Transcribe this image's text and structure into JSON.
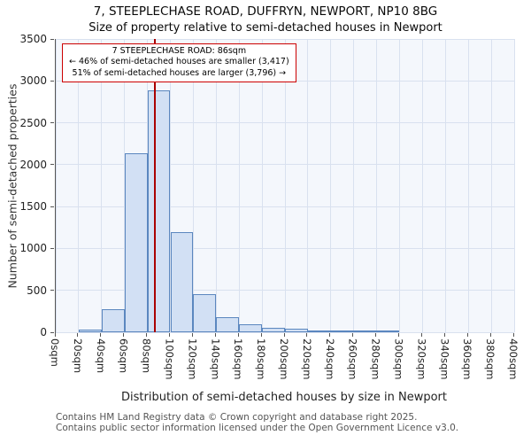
{
  "header": {
    "title": "7, STEEPLECHASE ROAD, DUFFRYN, NEWPORT, NP10 8BG",
    "subtitle": "Size of property relative to semi-detached houses in Newport"
  },
  "annotation": {
    "line1": "7 STEEPLECHASE ROAD: 86sqm",
    "line2": "← 46% of semi-detached houses are smaller (3,417)",
    "line3": "51% of semi-detached houses are larger (3,796) →"
  },
  "footer": {
    "line1": "Contains HM Land Registry data © Crown copyright and database right 2025.",
    "line2": "Contains public sector information licensed under the Open Government Licence v3.0."
  },
  "chart_data": {
    "type": "bar",
    "title": "7, STEEPLECHASE ROAD, DUFFRYN, NEWPORT, NP10 8BG",
    "subtitle": "Size of property relative to semi-detached houses in Newport",
    "xlabel": "Distribution of semi-detached houses by size in Newport",
    "ylabel": "Number of semi-detached properties",
    "xlim": [
      0,
      400
    ],
    "ylim": [
      0,
      3500
    ],
    "yticks": [
      0,
      500,
      1000,
      1500,
      2000,
      2500,
      3000,
      3500
    ],
    "bin_width_sqm": 20,
    "grid": true,
    "legend": false,
    "categories": [
      "0sqm",
      "20sqm",
      "40sqm",
      "60sqm",
      "80sqm",
      "100sqm",
      "120sqm",
      "140sqm",
      "160sqm",
      "180sqm",
      "200sqm",
      "220sqm",
      "240sqm",
      "260sqm",
      "280sqm",
      "300sqm",
      "320sqm",
      "340sqm",
      "360sqm",
      "380sqm",
      "400sqm"
    ],
    "values": [
      0,
      30,
      270,
      2140,
      2890,
      1200,
      450,
      175,
      100,
      50,
      45,
      25,
      12,
      8,
      5,
      0,
      0,
      0,
      0,
      0
    ],
    "marker": {
      "label": "7 STEEPLECHASE ROAD",
      "value_sqm": 86,
      "smaller_pct": 46,
      "smaller_count": "3,417",
      "larger_pct": 51,
      "larger_count": "3,796"
    },
    "colors": {
      "bar_fill": "#d2e0f4",
      "bar_edge": "#5b87bf",
      "grid": "#d9e1ef",
      "plot_bg": "#f4f7fc",
      "marker_line": "#aa0000",
      "annotation_border": "#cc0000",
      "spine": "#555555"
    }
  }
}
